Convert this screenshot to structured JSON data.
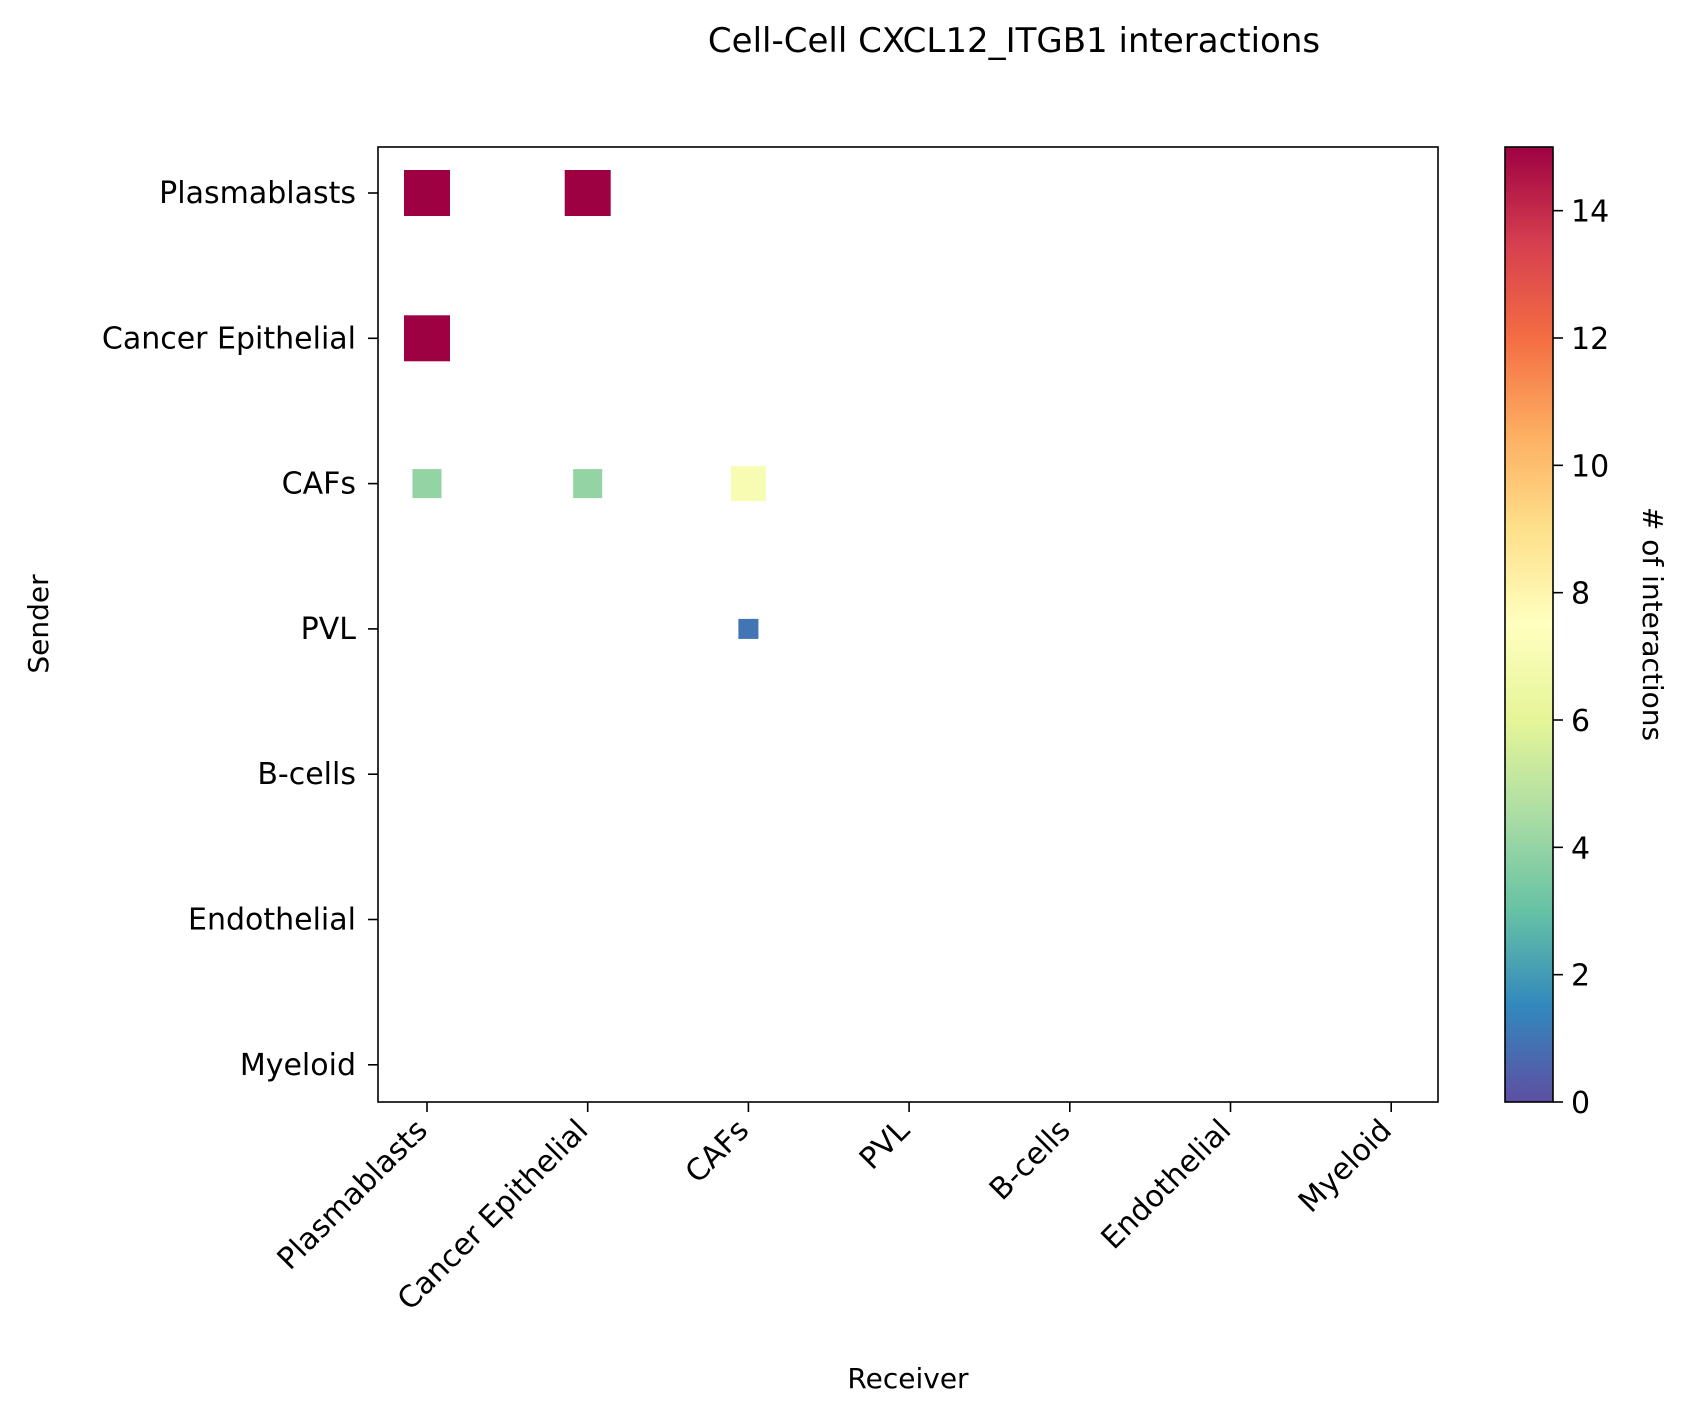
{
  "chart_data": {
    "type": "heatmap",
    "title": "Cell-Cell CXCL12_ITGB1 interactions",
    "xlabel": "Receiver",
    "ylabel": "Sender",
    "x_categories": [
      "Plasmablasts",
      "Cancer Epithelial",
      "CAFs",
      "PVL",
      "B-cells",
      "Endothelial",
      "Myeloid"
    ],
    "y_categories": [
      "Plasmablasts",
      "Cancer Epithelial",
      "CAFs",
      "PVL",
      "B-cells",
      "Endothelial",
      "Myeloid"
    ],
    "points": [
      {
        "sender": "Plasmablasts",
        "receiver": "Plasmablasts",
        "value": 15
      },
      {
        "sender": "Plasmablasts",
        "receiver": "Cancer Epithelial",
        "value": 15
      },
      {
        "sender": "Cancer Epithelial",
        "receiver": "Plasmablasts",
        "value": 15
      },
      {
        "sender": "CAFs",
        "receiver": "Plasmablasts",
        "value": 4
      },
      {
        "sender": "CAFs",
        "receiver": "Cancer Epithelial",
        "value": 4
      },
      {
        "sender": "CAFs",
        "receiver": "CAFs",
        "value": 7
      },
      {
        "sender": "PVL",
        "receiver": "CAFs",
        "value": 1
      }
    ],
    "colorbar": {
      "label": "# of interactions",
      "min": 0,
      "max": 15,
      "ticks": [
        0,
        2,
        4,
        6,
        8,
        10,
        12,
        14
      ],
      "colormap": "Spectral_r"
    },
    "grid": false
  }
}
